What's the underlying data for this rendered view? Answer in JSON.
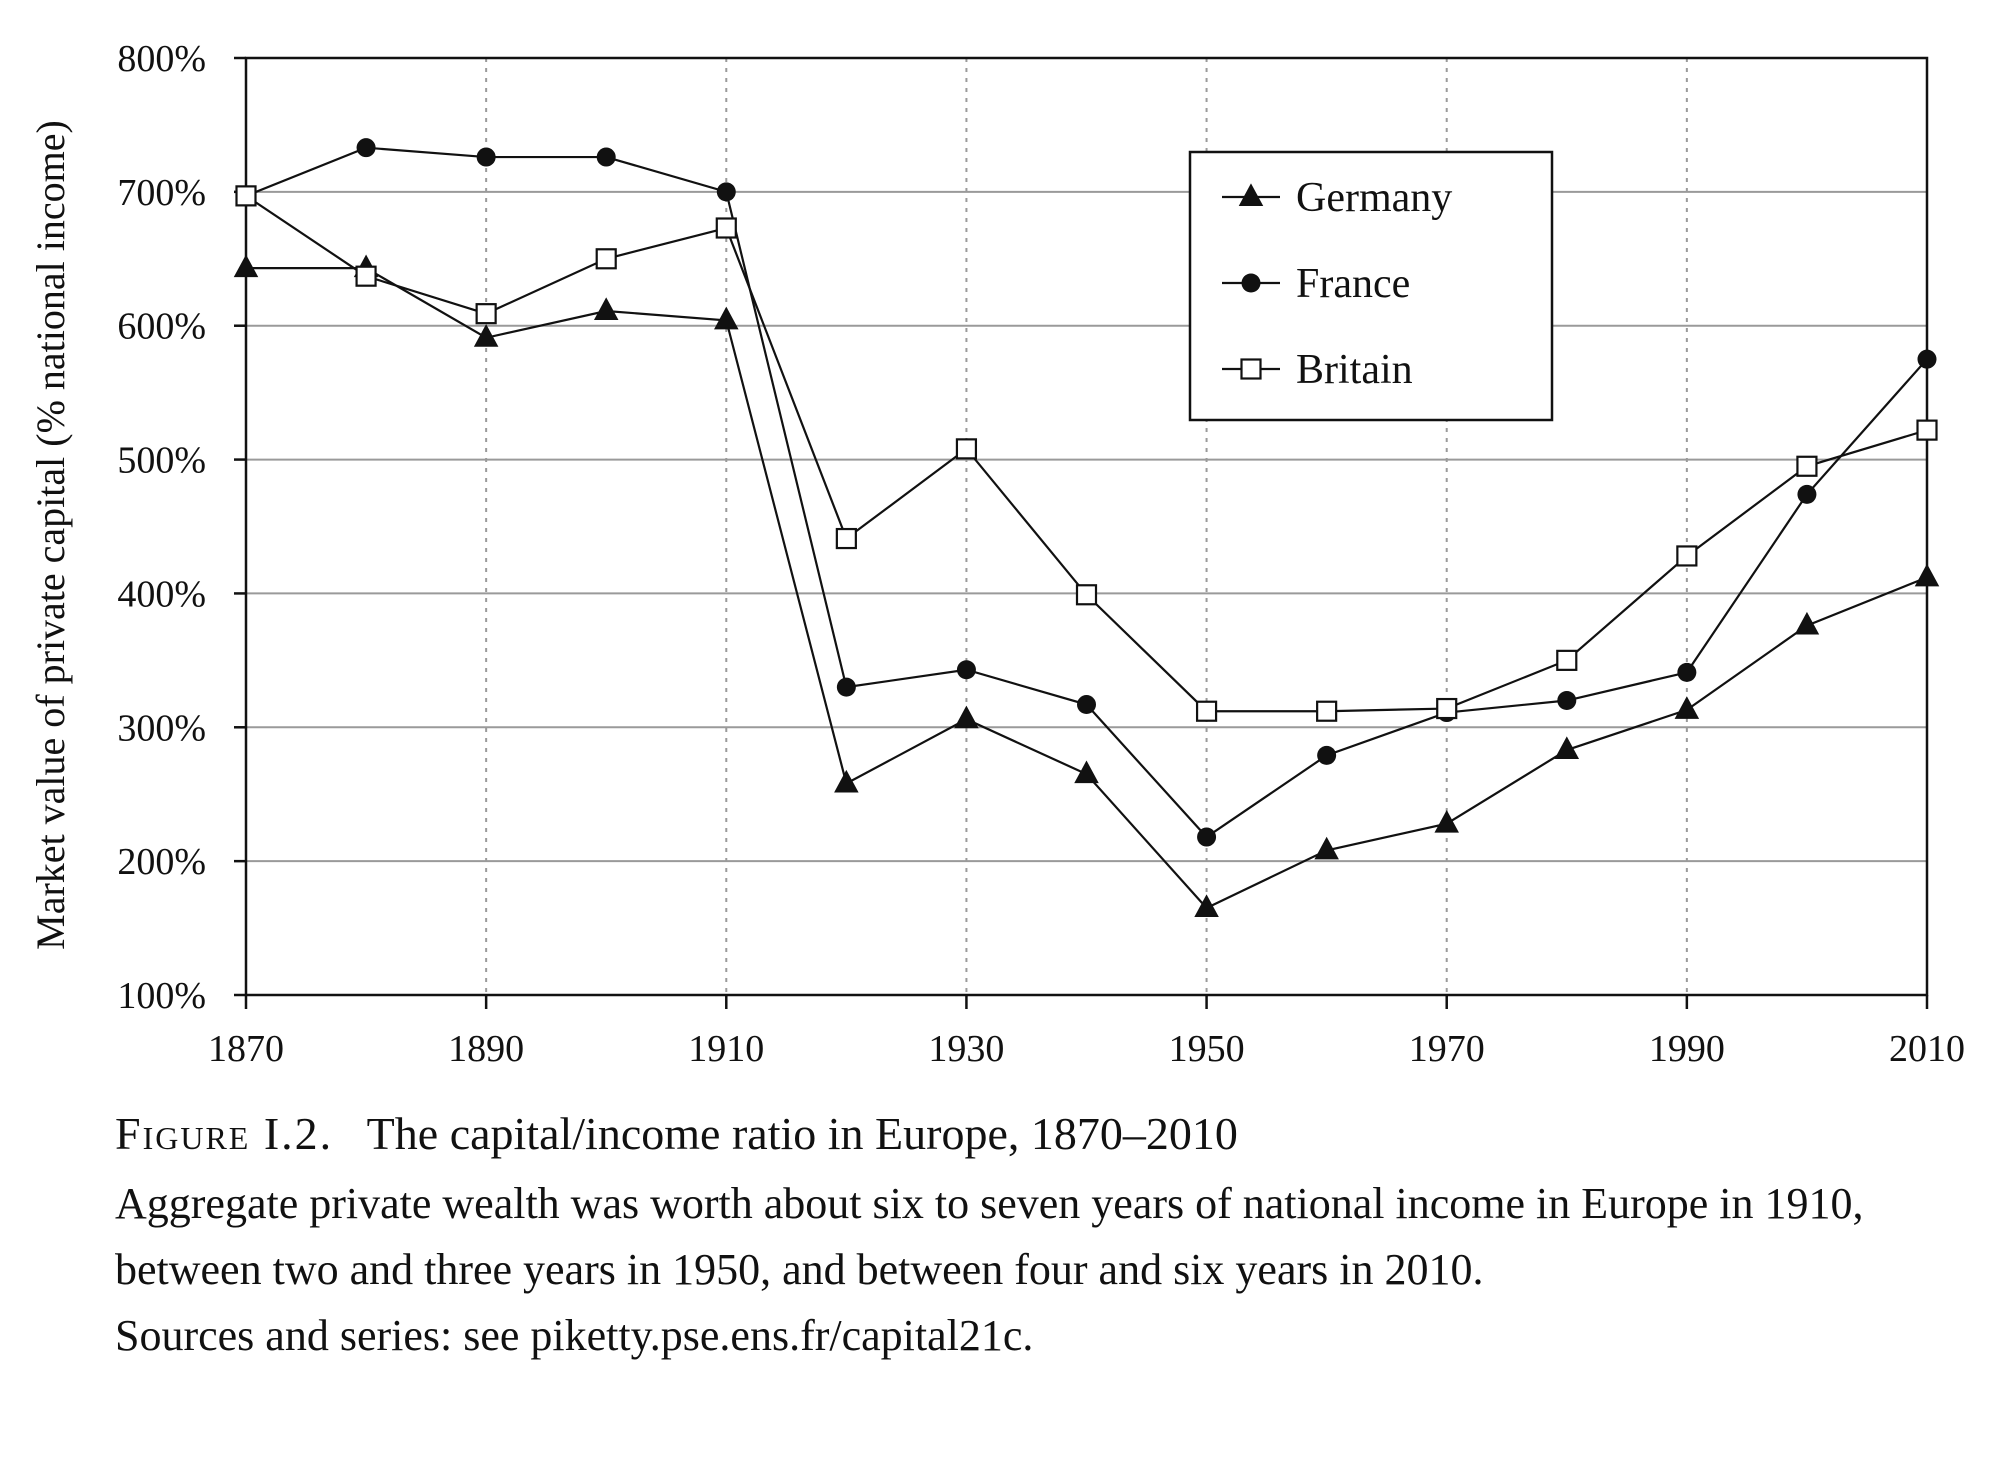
{
  "chart_data": {
    "type": "line",
    "title": "",
    "xlabel": "",
    "ylabel": "Market value of private capital (% national income)",
    "xlim": [
      1870,
      2010
    ],
    "ylim": [
      100,
      800
    ],
    "x_ticks": [
      1870,
      1890,
      1910,
      1930,
      1950,
      1970,
      1990,
      2010
    ],
    "x_tick_labels": [
      "1870",
      "1890",
      "1910",
      "1930",
      "1950",
      "1970",
      "1990",
      "2010"
    ],
    "y_ticks": [
      100,
      200,
      300,
      400,
      500,
      600,
      700,
      800
    ],
    "y_tick_labels": [
      "100%",
      "200%",
      "300%",
      "400%",
      "500%",
      "600%",
      "700%",
      "800%"
    ],
    "grid": "horizontal solid, vertical dotted",
    "legend_position": "top-right",
    "series": [
      {
        "name": "Germany",
        "marker": "triangle",
        "color": "#111111",
        "x": [
          1870,
          1880,
          1890,
          1900,
          1910,
          1920,
          1930,
          1940,
          1950,
          1960,
          1970,
          1980,
          1990,
          2000,
          2010
        ],
        "values": [
          643,
          643,
          591,
          611,
          604,
          258,
          306,
          265,
          165,
          208,
          228,
          283,
          313,
          376,
          412
        ]
      },
      {
        "name": "France",
        "marker": "circle",
        "color": "#111111",
        "x": [
          1870,
          1880,
          1890,
          1900,
          1910,
          1920,
          1930,
          1940,
          1950,
          1960,
          1970,
          1980,
          1990,
          2000,
          2010
        ],
        "values": [
          697,
          733,
          726,
          726,
          700,
          330,
          343,
          317,
          218,
          279,
          311,
          320,
          341,
          474,
          575
        ]
      },
      {
        "name": "Britain",
        "marker": "square-open",
        "color": "#111111",
        "x": [
          1870,
          1880,
          1890,
          1900,
          1910,
          1920,
          1930,
          1940,
          1950,
          1960,
          1970,
          1980,
          1990,
          2000,
          2010
        ],
        "values": [
          697,
          637,
          609,
          650,
          673,
          441,
          508,
          399,
          312,
          312,
          314,
          350,
          428,
          495,
          522
        ]
      }
    ]
  },
  "caption": {
    "label": "Figure I.2.",
    "heading": "The capital/income ratio in Europe, 1870–2010",
    "body": "Aggregate private wealth was worth about six to seven years of national income in Europe in 1910, between two and three years in 1950, and between four and six years in 2010.",
    "sources": "Sources and series: see piketty.pse.ens.fr/capital21c."
  }
}
